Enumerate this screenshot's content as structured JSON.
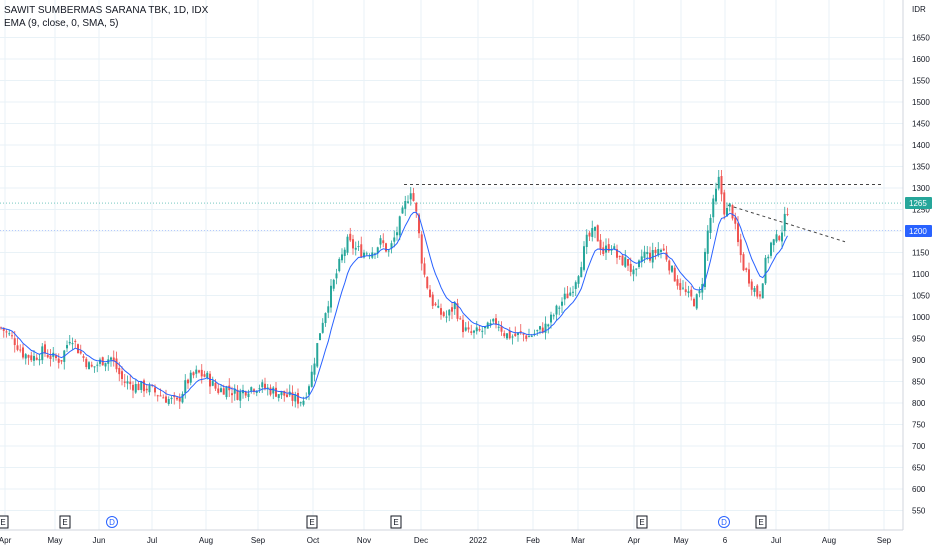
{
  "legend": {
    "symbol_line": "SAWIT SUMBERMAS SARANA TBK, 1D, IDX",
    "indicator_line": "EMA (9, close, 0, SMA, 5)"
  },
  "colors": {
    "up": "#26a69a",
    "down": "#ef5350",
    "ema": "#2962ff",
    "grid": "#e9f2f7",
    "price_tag": "#26a69a",
    "ema_tag": "#2962ff",
    "dashed_line": "#d84a4a",
    "event_circle": "#2962ff"
  },
  "chart_data": {
    "type": "candlestick",
    "currency": "IDR",
    "y_ticks": [
      550,
      600,
      650,
      700,
      750,
      800,
      850,
      900,
      950,
      1000,
      1050,
      1100,
      1150,
      1200,
      1250,
      1300,
      1350,
      1400,
      1450,
      1500,
      1550,
      1600,
      1650
    ],
    "x_ticks": [
      "Apr",
      "May",
      "Jun",
      "Jul",
      "Aug",
      "Sep",
      "Oct",
      "Nov",
      "Dec",
      "2022",
      "Feb",
      "Mar",
      "Apr",
      "May",
      "6",
      "Jul",
      "Aug",
      "Sep"
    ],
    "current_price": 1265,
    "ema_value": 1200,
    "trend_points": [
      [
        0,
        975
      ],
      [
        12,
        950
      ],
      [
        22,
        915
      ],
      [
        32,
        905
      ],
      [
        42,
        920
      ],
      [
        52,
        905
      ],
      [
        60,
        900
      ],
      [
        70,
        960
      ],
      [
        78,
        920
      ],
      [
        90,
        880
      ],
      [
        102,
        900
      ],
      [
        110,
        905
      ],
      [
        122,
        850
      ],
      [
        134,
        840
      ],
      [
        146,
        835
      ],
      [
        158,
        820
      ],
      [
        166,
        810
      ],
      [
        176,
        800
      ],
      [
        186,
        850
      ],
      [
        196,
        870
      ],
      [
        206,
        860
      ],
      [
        216,
        830
      ],
      [
        226,
        835
      ],
      [
        236,
        820
      ],
      [
        248,
        835
      ],
      [
        258,
        840
      ],
      [
        270,
        830
      ],
      [
        282,
        820
      ],
      [
        292,
        810
      ],
      [
        302,
        805
      ],
      [
        310,
        860
      ],
      [
        320,
        980
      ],
      [
        330,
        1060
      ],
      [
        338,
        1120
      ],
      [
        346,
        1175
      ],
      [
        354,
        1160
      ],
      [
        362,
        1150
      ],
      [
        372,
        1155
      ],
      [
        380,
        1175
      ],
      [
        388,
        1150
      ],
      [
        396,
        1200
      ],
      [
        404,
        1260
      ],
      [
        410,
        1300
      ],
      [
        416,
        1230
      ],
      [
        422,
        1110
      ],
      [
        430,
        1040
      ],
      [
        438,
        1010
      ],
      [
        446,
        1000
      ],
      [
        454,
        1030
      ],
      [
        460,
        980
      ],
      [
        468,
        960
      ],
      [
        478,
        965
      ],
      [
        488,
        975
      ],
      [
        496,
        990
      ],
      [
        504,
        960
      ],
      [
        512,
        955
      ],
      [
        520,
        960
      ],
      [
        528,
        955
      ],
      [
        536,
        965
      ],
      [
        546,
        980
      ],
      [
        554,
        1010
      ],
      [
        562,
        1040
      ],
      [
        570,
        1060
      ],
      [
        578,
        1110
      ],
      [
        586,
        1180
      ],
      [
        594,
        1200
      ],
      [
        602,
        1150
      ],
      [
        610,
        1170
      ],
      [
        618,
        1130
      ],
      [
        626,
        1130
      ],
      [
        634,
        1090
      ],
      [
        642,
        1150
      ],
      [
        650,
        1140
      ],
      [
        658,
        1160
      ],
      [
        664,
        1150
      ],
      [
        670,
        1110
      ],
      [
        678,
        1075
      ],
      [
        686,
        1050
      ],
      [
        694,
        1035
      ],
      [
        700,
        1060
      ],
      [
        706,
        1190
      ],
      [
        712,
        1260
      ],
      [
        718,
        1320
      ],
      [
        724,
        1240
      ],
      [
        730,
        1260
      ],
      [
        736,
        1180
      ],
      [
        742,
        1120
      ],
      [
        750,
        1080
      ],
      [
        758,
        1045
      ],
      [
        764,
        1120
      ],
      [
        770,
        1170
      ],
      [
        776,
        1180
      ],
      [
        782,
        1210
      ],
      [
        788,
        1265
      ]
    ],
    "dashed_lines": [
      {
        "from": [
          404,
          1308
        ],
        "to": [
          882,
          1308
        ]
      },
      {
        "from": [
          728,
          1260
        ],
        "to": [
          845,
          1175
        ]
      }
    ]
  },
  "x_axis": {
    "event_markers": [
      {
        "label": "E",
        "type": "earnings"
      },
      {
        "label": "E",
        "type": "earnings"
      },
      {
        "label": "D",
        "type": "dividend"
      },
      {
        "label": "E",
        "type": "earnings"
      },
      {
        "label": "E",
        "type": "earnings"
      },
      {
        "label": "E",
        "type": "earnings"
      },
      {
        "label": "D",
        "type": "dividend"
      },
      {
        "label": "E",
        "type": "earnings"
      }
    ]
  },
  "price_axis": {
    "header": "IDR",
    "price_tag": "1265",
    "ema_tag": "1200"
  }
}
